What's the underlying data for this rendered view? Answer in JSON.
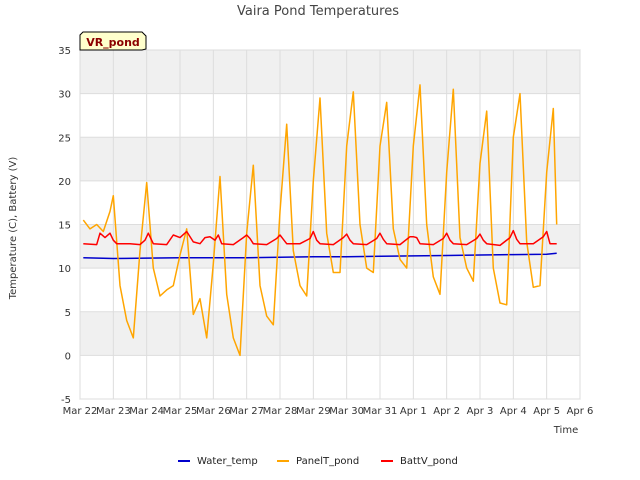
{
  "chart_data": {
    "type": "line",
    "title": "Vaira Pond Temperatures",
    "xlabel": "Time",
    "ylabel": "Temperature (C), Battery (V)",
    "badge": "VR_pond",
    "x_ticks": [
      "Mar 22",
      "Mar 23",
      "Mar 24",
      "Mar 25",
      "Mar 26",
      "Mar 27",
      "Mar 28",
      "Mar 29",
      "Mar 30",
      "Mar 31",
      "Apr 1",
      "Apr 2",
      "Apr 3",
      "Apr 4",
      "Apr 5",
      "Apr 6"
    ],
    "xlim": [
      0,
      15
    ],
    "ylim": [
      -5,
      35
    ],
    "y_ticks": [
      -5,
      0,
      5,
      10,
      15,
      20,
      25,
      30,
      35
    ],
    "grid": true,
    "legend_position": "bottom",
    "series": [
      {
        "name": "Water_temp",
        "color": "#0000cc",
        "x": [
          0.1,
          1.0,
          2.0,
          3.0,
          4.0,
          5.0,
          6.0,
          7.0,
          8.0,
          9.0,
          10.0,
          11.0,
          12.0,
          13.0,
          14.0,
          14.3
        ],
        "y": [
          11.2,
          11.1,
          11.15,
          11.2,
          11.2,
          11.2,
          11.25,
          11.3,
          11.3,
          11.35,
          11.4,
          11.45,
          11.5,
          11.55,
          11.6,
          11.7
        ]
      },
      {
        "name": "PanelT_pond",
        "color": "#ffa500",
        "x": [
          0.1,
          0.3,
          0.5,
          0.7,
          0.9,
          1.0,
          1.2,
          1.4,
          1.6,
          1.8,
          2.0,
          2.2,
          2.4,
          2.6,
          2.8,
          3.0,
          3.2,
          3.4,
          3.6,
          3.8,
          4.0,
          4.2,
          4.4,
          4.6,
          4.8,
          5.0,
          5.2,
          5.4,
          5.6,
          5.8,
          6.0,
          6.2,
          6.4,
          6.6,
          6.8,
          7.0,
          7.2,
          7.4,
          7.6,
          7.8,
          8.0,
          8.2,
          8.4,
          8.6,
          8.8,
          9.0,
          9.2,
          9.4,
          9.6,
          9.8,
          10.0,
          10.2,
          10.4,
          10.6,
          10.8,
          11.0,
          11.2,
          11.4,
          11.6,
          11.8,
          12.0,
          12.2,
          12.4,
          12.6,
          12.8,
          13.0,
          13.2,
          13.4,
          13.6,
          13.8,
          14.0,
          14.2,
          14.3
        ],
        "y": [
          15.5,
          14.5,
          15.0,
          14.2,
          16.5,
          18.3,
          8.0,
          4.0,
          2.0,
          12.0,
          19.8,
          10.0,
          6.8,
          7.5,
          8.0,
          11.5,
          14.5,
          4.7,
          6.5,
          2.0,
          10.5,
          20.5,
          7.0,
          2.0,
          0.0,
          14.0,
          21.8,
          8.0,
          4.5,
          3.5,
          16.5,
          26.5,
          12.0,
          8.0,
          6.8,
          20.0,
          29.5,
          14.0,
          9.5,
          9.5,
          24.0,
          30.2,
          15.0,
          10.0,
          9.5,
          24.0,
          29.0,
          14.5,
          11.0,
          10.0,
          24.0,
          31.0,
          15.0,
          9.0,
          7.0,
          21.0,
          30.5,
          13.5,
          10.0,
          8.5,
          22.0,
          28.0,
          10.0,
          6.0,
          5.8,
          25.0,
          30.0,
          13.0,
          7.8,
          8.0,
          21.0,
          28.3,
          15.0
        ]
      },
      {
        "name": "BattV_pond",
        "color": "#ff0000",
        "x": [
          0.1,
          0.5,
          0.6,
          0.75,
          0.9,
          1.0,
          1.1,
          1.5,
          1.8,
          1.95,
          2.05,
          2.2,
          2.6,
          2.8,
          3.0,
          3.2,
          3.4,
          3.6,
          3.75,
          3.9,
          4.05,
          4.15,
          4.25,
          4.6,
          4.9,
          5.0,
          5.1,
          5.2,
          5.6,
          5.9,
          6.0,
          6.1,
          6.2,
          6.6,
          6.9,
          7.0,
          7.1,
          7.2,
          7.6,
          7.9,
          8.0,
          8.1,
          8.2,
          8.6,
          8.9,
          9.0,
          9.1,
          9.2,
          9.6,
          9.9,
          10.0,
          10.1,
          10.2,
          10.6,
          10.9,
          11.0,
          11.1,
          11.2,
          11.6,
          11.9,
          12.0,
          12.1,
          12.2,
          12.6,
          12.9,
          13.0,
          13.1,
          13.2,
          13.6,
          13.9,
          14.0,
          14.1,
          14.3
        ],
        "y": [
          12.8,
          12.7,
          14.0,
          13.5,
          14.0,
          13.2,
          12.8,
          12.8,
          12.7,
          13.2,
          14.0,
          12.8,
          12.7,
          13.8,
          13.5,
          14.2,
          13.0,
          12.8,
          13.5,
          13.6,
          13.2,
          13.8,
          12.8,
          12.7,
          13.5,
          13.8,
          13.4,
          12.8,
          12.7,
          13.4,
          13.8,
          13.3,
          12.8,
          12.8,
          13.4,
          14.2,
          13.2,
          12.8,
          12.7,
          13.5,
          13.9,
          13.2,
          12.8,
          12.7,
          13.4,
          14.0,
          13.3,
          12.8,
          12.7,
          13.6,
          13.6,
          13.5,
          12.8,
          12.7,
          13.4,
          14.0,
          13.2,
          12.8,
          12.7,
          13.4,
          13.9,
          13.2,
          12.8,
          12.6,
          13.5,
          14.3,
          13.3,
          12.8,
          12.8,
          13.6,
          14.2,
          12.8,
          12.8
        ]
      }
    ]
  }
}
